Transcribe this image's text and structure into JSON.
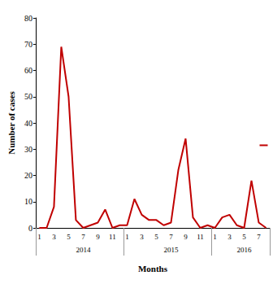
{
  "chart_data": {
    "type": "line",
    "x_label": "Months",
    "y_label": "Number of cases",
    "categories": [
      "1",
      null,
      "3",
      null,
      "5",
      null,
      "7",
      null,
      "9",
      null,
      "11",
      null,
      "1",
      null,
      "3",
      null,
      "5",
      null,
      "7",
      null,
      "9",
      null,
      "11",
      null,
      "1",
      null,
      "3",
      null,
      "5",
      null,
      "7",
      null
    ],
    "values": [
      0,
      0,
      8,
      69,
      50,
      3,
      0,
      1,
      2,
      7,
      0,
      1,
      1,
      11,
      5,
      3,
      3,
      1,
      2,
      22,
      34,
      4,
      0,
      1,
      0,
      4,
      5,
      1,
      0,
      18,
      2,
      0
    ],
    "year_labels": [
      "2014",
      "2015",
      "2016"
    ],
    "year_sizes": [
      12,
      12,
      8
    ],
    "color": "#c00000",
    "ylim": [
      0,
      80
    ],
    "yticks": [
      0,
      10,
      20,
      30,
      40,
      50,
      60,
      70,
      80
    ],
    "grid": false
  }
}
